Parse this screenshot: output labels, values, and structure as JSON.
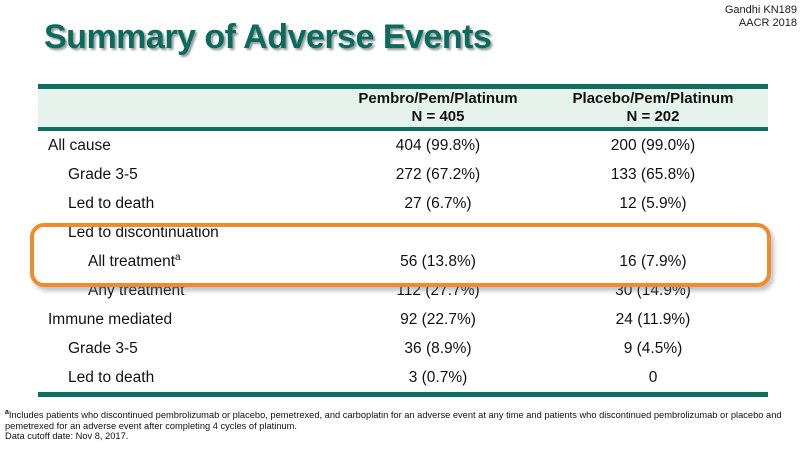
{
  "slide": {
    "title": "Summary of Adverse Events",
    "attribution_line1": "Gandhi KN189",
    "attribution_line2": "AACR 2018"
  },
  "table": {
    "columns": [
      {
        "name": "Pembro/Pem/Platinum",
        "n_label": "N = 405"
      },
      {
        "name": "Placebo/Pem/Platinum",
        "n_label": "N = 202"
      }
    ],
    "rows": [
      {
        "label": "All cause",
        "sup": "",
        "pembro": "404 (99.8%)",
        "placebo": "200 (99.0%)"
      },
      {
        "label": "Grade 3-5",
        "sup": "",
        "pembro": "272 (67.2%)",
        "placebo": "133 (65.8%)"
      },
      {
        "label": "Led to death",
        "sup": "",
        "pembro": "27 (6.7%)",
        "placebo": "12 (5.9%)"
      },
      {
        "label": "Led to discontinuation",
        "sup": "",
        "pembro": "",
        "placebo": ""
      },
      {
        "label": "All treatment",
        "sup": "a",
        "pembro": "56 (13.8%)",
        "placebo": "16 (7.9%)"
      },
      {
        "label": "Any treatment",
        "sup": "",
        "pembro": "112 (27.7%)",
        "placebo": "30 (14.9%)"
      },
      {
        "label": "Immune mediated",
        "sup": "",
        "pembro": "92 (22.7%)",
        "placebo": "24 (11.9%)"
      },
      {
        "label": "Grade 3-5",
        "sup": "",
        "pembro": "36 (8.9%)",
        "placebo": "9 (4.5%)"
      },
      {
        "label": "Led to death",
        "sup": "",
        "pembro": "3 (0.7%)",
        "placebo": "0"
      }
    ]
  },
  "footnote": {
    "marker": "a",
    "text": "Includes patients who discontinued pembrolizumab or placebo, pemetrexed, and carboplatin for an adverse event at any time and patients who discontinued pembrolizumab or placebo and pemetrexed for an adverse event after completing 4 cycles of platinum.",
    "data_cutoff": "Data cutoff date: Nov 8, 2017."
  },
  "colors": {
    "title_teal": "#0d6a5e",
    "table_border_teal": "#0e6f60",
    "header_bg_mint": "#e6f2ec",
    "highlight_orange": "#ee8b2b"
  }
}
